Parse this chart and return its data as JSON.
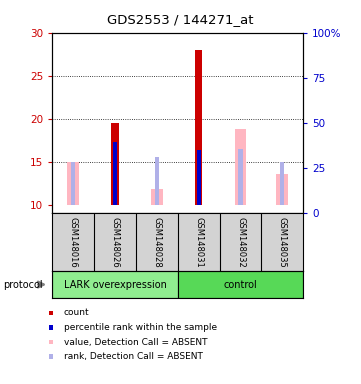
{
  "title": "GDS2553 / 144271_at",
  "samples": [
    "GSM148016",
    "GSM148026",
    "GSM148028",
    "GSM148031",
    "GSM148032",
    "GSM148035"
  ],
  "ylim_left": [
    9,
    30
  ],
  "ylim_right": [
    0,
    100
  ],
  "yticks_left": [
    10,
    15,
    20,
    25,
    30
  ],
  "yticks_right": [
    0,
    25,
    50,
    75,
    100
  ],
  "ytick_labels_right": [
    "0",
    "25",
    "50",
    "75",
    "100%"
  ],
  "count_values": [
    null,
    19.5,
    null,
    28.0,
    null,
    null
  ],
  "count_bottom": [
    null,
    10.0,
    null,
    10.0,
    null,
    null
  ],
  "rank_values": [
    null,
    17.3,
    null,
    16.3,
    null,
    null
  ],
  "rank_bottom": [
    null,
    10.0,
    null,
    10.0,
    null,
    null
  ],
  "absent_value_values": [
    14.9,
    null,
    11.8,
    null,
    18.8,
    13.6
  ],
  "absent_value_bottom": [
    10.0,
    null,
    10.0,
    null,
    10.0,
    10.0
  ],
  "absent_rank_values": [
    15.0,
    null,
    15.5,
    null,
    16.5,
    15.0
  ],
  "absent_rank_bottom": [
    10.0,
    null,
    10.0,
    null,
    10.0,
    10.0
  ],
  "count_color": "#cc0000",
  "rank_color": "#0000cc",
  "absent_value_color": "#ffb6c1",
  "absent_rank_color": "#b0b0e8",
  "left_tick_color": "#cc0000",
  "right_tick_color": "#0000cc",
  "bg_color": "#ffffff",
  "sample_box_color": "#d3d3d3",
  "lark_color": "#90ee90",
  "ctrl_color": "#57d957",
  "legend_items": [
    {
      "color": "#cc0000",
      "label": "count"
    },
    {
      "color": "#0000cc",
      "label": "percentile rank within the sample"
    },
    {
      "color": "#ffb6c1",
      "label": "value, Detection Call = ABSENT"
    },
    {
      "color": "#b0b0e8",
      "label": "rank, Detection Call = ABSENT"
    }
  ]
}
